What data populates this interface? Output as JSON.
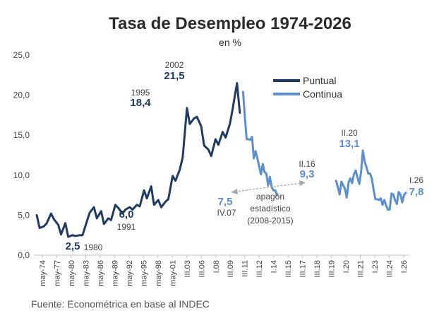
{
  "colors": {
    "puntual": "#1f3a63",
    "continua": "#5b8fd0",
    "gap_arrow": "#a6a6a6",
    "axis": "#bfbfbf"
  },
  "chart_data": {
    "type": "line",
    "title": "Tasa de Desempleo 1974-2026",
    "subtitle": "en %",
    "source": "Fuente: Econométrica en base al INDEC",
    "ylim": [
      0,
      25
    ],
    "yticks": [
      "0,0",
      "5,0",
      "10,0",
      "15,0",
      "20,0",
      "25,0"
    ],
    "xticks": [
      "may-74",
      "may-77",
      "may-80",
      "may-83",
      "may-86",
      "may-89",
      "may-92",
      "may-95",
      "may-98",
      "may-01",
      "III.03",
      "III.06",
      "I.08",
      "III.09",
      "III.11",
      "III.12",
      "I.14",
      "III.15",
      "III.17",
      "III.18",
      "III.19",
      "I.20",
      "III.21",
      "I.23",
      "III.24",
      "I.26"
    ],
    "grid": false,
    "legend_position": "top-right",
    "series": [
      {
        "name": "Puntual",
        "x": [
          1974.4,
          1974.8,
          1975.4,
          1975.8,
          1976.4,
          1976.8,
          1977.4,
          1977.8,
          1978.4,
          1978.8,
          1979.4,
          1979.8,
          1980.4,
          1980.8,
          1981.4,
          1981.8,
          1982.4,
          1982.8,
          1983.4,
          1983.8,
          1984.4,
          1984.8,
          1985.4,
          1985.8,
          1986.4,
          1986.8,
          1987.4,
          1987.8,
          1988.4,
          1988.8,
          1989.4,
          1989.8,
          1990.4,
          1990.8,
          1991.4,
          1991.8,
          1992.4,
          1992.8,
          1993.4,
          1993.8,
          1994.4,
          1994.8,
          1995.4,
          1995.8,
          1996.4,
          1996.8,
          1997.4,
          1997.8,
          1998.4,
          1998.8,
          1999.4,
          1999.8,
          2000.4,
          2000.8,
          2001.4,
          2001.8,
          2002.4,
          2002.8
        ],
        "values": [
          5.0,
          3.4,
          3.6,
          4.0,
          5.2,
          4.5,
          3.8,
          2.6,
          4.0,
          2.3,
          2.5,
          2.4,
          2.5,
          2.5,
          4.2,
          5.3,
          6.0,
          4.6,
          5.5,
          3.9,
          4.6,
          4.4,
          6.3,
          5.9,
          5.2,
          5.7,
          6.0,
          5.7,
          6.3,
          6.1,
          8.1,
          7.1,
          8.6,
          6.3,
          6.9,
          6.0,
          6.7,
          7.0,
          9.9,
          9.3,
          10.7,
          12.2,
          18.4,
          16.4,
          17.1,
          17.3,
          16.1,
          13.7,
          13.2,
          12.4,
          14.5,
          13.8,
          15.4,
          14.7,
          16.4,
          18.3,
          21.5,
          17.8
        ]
      },
      {
        "name": "Continua",
        "x": [
          2003.25,
          2003.5,
          2003.75,
          2004.0,
          2004.25,
          2004.5,
          2004.75,
          2005.0,
          2005.25,
          2005.5,
          2005.75,
          2006.0,
          2006.25,
          2006.5,
          2006.75,
          2007.0,
          2007.25,
          2007.5,
          2007.75,
          2008.0
        ],
        "values": [
          20.4,
          17.3,
          14.5,
          14.5,
          14.4,
          14.8,
          12.1,
          13.0,
          12.1,
          11.1,
          10.1,
          11.4,
          10.4,
          10.2,
          8.7,
          9.8,
          8.5,
          8.1,
          8.1,
          7.5
        ]
      },
      {
        "name": "Continua",
        "x": [
          2016.25,
          2016.5,
          2016.75,
          2017.0,
          2017.25,
          2017.5,
          2017.75,
          2018.0,
          2018.25,
          2018.5,
          2018.75,
          2019.0,
          2019.25,
          2019.5,
          2019.75,
          2020.0,
          2020.25,
          2020.5,
          2020.75,
          2021.0,
          2021.25,
          2021.5,
          2021.75,
          2022.0,
          2022.25,
          2022.5,
          2022.75,
          2023.0,
          2023.25,
          2023.5,
          2023.75,
          2024.0,
          2024.25,
          2024.5,
          2024.75,
          2025.0,
          2025.25,
          2025.5,
          2025.75,
          2026.0
        ],
        "values": [
          9.3,
          8.5,
          7.6,
          9.2,
          8.7,
          8.3,
          7.2,
          9.1,
          9.6,
          9.0,
          10.1,
          10.6,
          9.7,
          8.9,
          10.4,
          13.1,
          11.7,
          11.0,
          10.2,
          10.2,
          9.6,
          8.2,
          7.0,
          7.0,
          6.9,
          7.1,
          6.3,
          6.9,
          6.2,
          5.7,
          5.7,
          7.7,
          7.6,
          6.9,
          6.4,
          7.9,
          7.6,
          6.6,
          7.5,
          7.8
        ]
      }
    ],
    "annotations": [
      {
        "value": "2,5",
        "label": "1980"
      },
      {
        "value": "6,0",
        "label": "1991"
      },
      {
        "value": "18,4",
        "label": "1995"
      },
      {
        "value": "21,5",
        "label": "2002"
      },
      {
        "value": "7,5",
        "label": "IV.07"
      },
      {
        "value": "9,3",
        "label": "II.16"
      },
      {
        "value": "13,1",
        "label": "II.20"
      },
      {
        "value": "7,8",
        "label": "I.26"
      }
    ],
    "gap_note": [
      "apagón",
      "estadístico",
      "(2008-2015)"
    ]
  }
}
